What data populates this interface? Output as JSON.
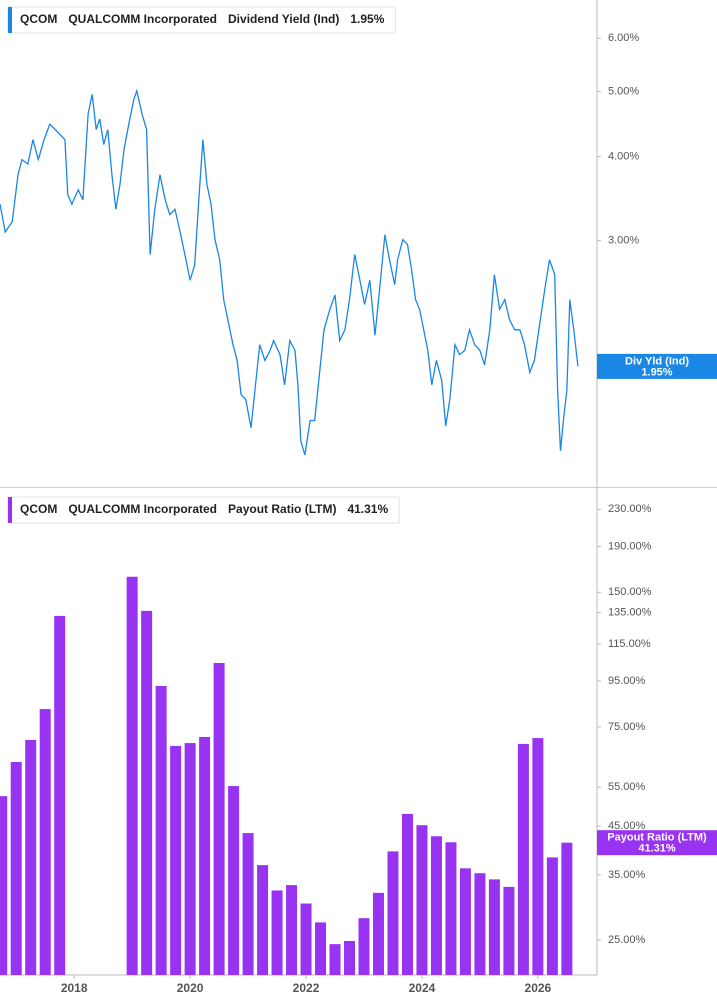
{
  "chart_data": [
    {
      "type": "line",
      "ticker": "QCOM",
      "company": "QUALCOMM Incorporated",
      "x": [
        2016.72,
        2016.81,
        2016.93,
        2017.03,
        2017.1,
        2017.2,
        2017.29,
        2017.38,
        2017.48,
        2017.58,
        2017.67,
        2017.75,
        2017.84,
        2017.89,
        2017.96,
        2018.07,
        2018.15,
        2018.24,
        2018.31,
        2018.38,
        2018.44,
        2018.51,
        2018.58,
        2018.65,
        2018.72,
        2018.79,
        2018.86,
        2018.96,
        2019.03,
        2019.08,
        2019.17,
        2019.25,
        2019.31,
        2019.39,
        2019.48,
        2019.57,
        2019.65,
        2019.74,
        2019.82,
        2019.91,
        2020.0,
        2020.08,
        2020.15,
        2020.22,
        2020.29,
        2020.36,
        2020.43,
        2020.51,
        2020.58,
        2020.65,
        2020.74,
        2020.81,
        2020.88,
        2020.96,
        2021.05,
        2021.12,
        2021.2,
        2021.29,
        2021.38,
        2021.44,
        2021.55,
        2021.63,
        2021.72,
        2021.81,
        2021.86,
        2021.91,
        2021.98,
        2022.07,
        2022.15,
        2022.24,
        2022.31,
        2022.41,
        2022.5,
        2022.58,
        2022.67,
        2022.75,
        2022.84,
        2022.93,
        2023.01,
        2023.1,
        2023.19,
        2023.27,
        2023.36,
        2023.44,
        2023.53,
        2023.58,
        2023.67,
        2023.75,
        2023.82,
        2023.89,
        2023.96,
        2024.03,
        2024.1,
        2024.17,
        2024.25,
        2024.34,
        2024.41,
        2024.48,
        2024.57,
        2024.65,
        2024.74,
        2024.82,
        2024.91,
        2025.0,
        2025.08,
        2025.17,
        2025.25,
        2025.34,
        2025.43,
        2025.51,
        2025.6,
        2025.69,
        2025.77,
        2025.86,
        2025.94,
        2026.03,
        2026.12,
        2026.2,
        2026.29,
        2026.34,
        2026.39,
        2026.44,
        2026.5,
        2026.55,
        2026.62,
        2026.69
      ],
      "series": [
        {
          "name": "Dividend Yield (Ind)",
          "color": "#1a86e6",
          "values": [
            3.4,
            3.09,
            3.2,
            3.76,
            3.96,
            3.9,
            4.24,
            3.96,
            4.24,
            4.47,
            4.39,
            4.32,
            4.24,
            3.51,
            3.4,
            3.57,
            3.45,
            4.63,
            4.95,
            4.39,
            4.55,
            4.17,
            4.39,
            3.76,
            3.34,
            3.64,
            4.1,
            4.55,
            4.87,
            5.01,
            4.63,
            4.39,
            2.86,
            3.34,
            3.76,
            3.45,
            3.28,
            3.34,
            3.11,
            2.86,
            2.62,
            2.76,
            3.45,
            4.24,
            3.64,
            3.4,
            3.01,
            2.81,
            2.45,
            2.29,
            2.1,
            1.99,
            1.77,
            1.74,
            1.58,
            1.8,
            2.1,
            1.99,
            2.06,
            2.13,
            2.03,
            1.83,
            2.13,
            2.06,
            1.83,
            1.51,
            1.44,
            1.62,
            1.62,
            1.93,
            2.21,
            2.37,
            2.49,
            2.13,
            2.21,
            2.45,
            2.86,
            2.62,
            2.41,
            2.62,
            2.17,
            2.54,
            3.06,
            2.81,
            2.58,
            2.81,
            3.01,
            2.96,
            2.72,
            2.45,
            2.37,
            2.21,
            2.06,
            1.83,
            1.99,
            1.86,
            1.59,
            1.74,
            2.1,
            2.03,
            2.06,
            2.21,
            2.1,
            2.06,
            1.96,
            2.21,
            2.67,
            2.37,
            2.45,
            2.29,
            2.21,
            2.21,
            2.1,
            1.91,
            1.99,
            2.25,
            2.54,
            2.81,
            2.67,
            1.8,
            1.46,
            1.62,
            1.8,
            2.45,
            2.21,
            1.95
          ]
        }
      ],
      "last_value": {
        "value": 1.95,
        "label": "1.95%"
      },
      "callout_label": "Div Yld (Ind)",
      "xlim": [
        2016.72,
        2027.02
      ],
      "ylim": [
        1.29,
        6.84
      ],
      "log_y": true,
      "yticks": [
        {
          "value": 3,
          "label": "3.00%"
        },
        {
          "value": 4,
          "label": "4.00%"
        },
        {
          "value": 5,
          "label": "5.00%"
        },
        {
          "value": 6,
          "label": "6.00%"
        }
      ]
    },
    {
      "type": "bar",
      "ticker": "QCOM",
      "company": "QUALCOMM Incorporated",
      "x": [
        2016.75,
        2017.0,
        2017.25,
        2017.5,
        2017.75,
        2018.0,
        2018.25,
        2018.5,
        2018.75,
        2019.0,
        2019.25,
        2019.5,
        2019.75,
        2020.0,
        2020.25,
        2020.5,
        2020.75,
        2021.0,
        2021.25,
        2021.5,
        2021.75,
        2022.0,
        2022.25,
        2022.5,
        2022.75,
        2023.0,
        2023.25,
        2023.5,
        2023.75,
        2024.0,
        2024.25,
        2024.5,
        2024.75,
        2025.0,
        2025.25,
        2025.5,
        2025.75,
        2026.0,
        2026.25,
        2026.5
      ],
      "series": [
        {
          "name": "Payout Ratio (LTM)",
          "color": "#9933f2",
          "values": [
            52.5,
            62.6,
            70.1,
            82.2,
            132.8,
            null,
            null,
            null,
            null,
            162.5,
            136.3,
            92.6,
            68.0,
            69.0,
            71.2,
            104.2,
            55.3,
            43.4,
            36.8,
            32.3,
            33.2,
            30.2,
            27.4,
            24.5,
            24.9,
            28.0,
            31.9,
            39.5,
            47.9,
            45.2,
            42.7,
            41.4,
            36.2,
            35.3,
            34.2,
            32.9,
            68.7,
            70.8,
            38.3,
            41.31
          ]
        }
      ],
      "last_value": {
        "value": 41.31,
        "label": "41.31%"
      },
      "xlim": [
        2016.72,
        2027.02
      ],
      "xticks": [
        2018,
        2020,
        2022,
        2024,
        2026
      ],
      "ylim": [
        20.9,
        254
      ],
      "log_y": true,
      "yticks": [
        {
          "value": 25,
          "label": "25.00%"
        },
        {
          "value": 35,
          "label": "35.00%"
        },
        {
          "value": 45,
          "label": "45.00%"
        },
        {
          "value": 55,
          "label": "55.00%"
        },
        {
          "value": 75,
          "label": "75.00%"
        },
        {
          "value": 95,
          "label": "95.00%"
        },
        {
          "value": 115,
          "label": "115.00%"
        },
        {
          "value": 135,
          "label": "135.00%"
        },
        {
          "value": 150,
          "label": "150.00%"
        },
        {
          "value": 190,
          "label": "190.00%"
        },
        {
          "value": 230,
          "label": "230.00%"
        }
      ]
    }
  ]
}
